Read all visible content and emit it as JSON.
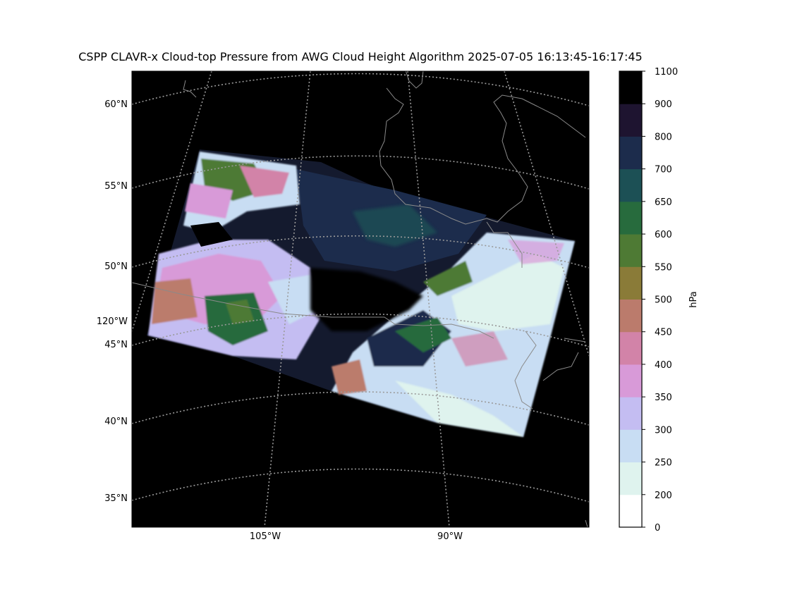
{
  "title": "CSPP CLAVR-x Cloud-top Pressure from AWG Cloud Height Algorithm 2025-07-05 16:13:45-16:17:45",
  "map": {
    "lat_labels": [
      "60°N",
      "55°N",
      "50°N",
      "45°N",
      "40°N",
      "35°N"
    ],
    "lon_labels": [
      "120°W",
      "105°W",
      "90°W"
    ],
    "background_color": "#000000",
    "gridline_color": "#9a9a9a",
    "coastline_color": "#8a8a8a"
  },
  "colorbar": {
    "label": "hPa",
    "tick_labels": [
      "0",
      "200",
      "250",
      "300",
      "350",
      "400",
      "450",
      "500",
      "550",
      "600",
      "650",
      "700",
      "800",
      "900",
      "1100"
    ],
    "colors": [
      "#ffffff",
      "#dff3ee",
      "#c8ddf3",
      "#c4bdf2",
      "#d89ad8",
      "#d283a8",
      "#bb7b6c",
      "#8a7b38",
      "#4e7a34",
      "#276b3d",
      "#1c5055",
      "#1c2c4c",
      "#1e1430",
      "#000000"
    ]
  }
}
